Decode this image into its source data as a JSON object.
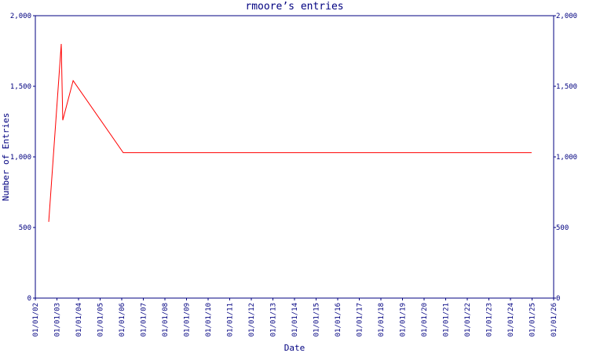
{
  "chart_data": {
    "type": "line",
    "title": "rmoore’s entries",
    "x_label": "Date",
    "y_label": "Number of Entries",
    "x": [
      2.62,
      3.2,
      3.27,
      3.75,
      6.07,
      24.98
    ],
    "series": [
      {
        "name": "rmoore",
        "color": "#ff0000",
        "values": [
          540,
          1800,
          1260,
          1540,
          1030,
          1030
        ]
      }
    ],
    "xlim": [
      2,
      26
    ],
    "xticks": [
      {
        "value": 2,
        "label": "01/01/02"
      },
      {
        "value": 3,
        "label": "01/01/03"
      },
      {
        "value": 4,
        "label": "01/01/04"
      },
      {
        "value": 5,
        "label": "01/01/05"
      },
      {
        "value": 6,
        "label": "01/01/06"
      },
      {
        "value": 7,
        "label": "01/01/07"
      },
      {
        "value": 8,
        "label": "01/01/08"
      },
      {
        "value": 9,
        "label": "01/01/09"
      },
      {
        "value": 10,
        "label": "01/01/10"
      },
      {
        "value": 11,
        "label": "01/01/11"
      },
      {
        "value": 12,
        "label": "01/01/12"
      },
      {
        "value": 13,
        "label": "01/01/13"
      },
      {
        "value": 14,
        "label": "01/01/14"
      },
      {
        "value": 15,
        "label": "01/01/15"
      },
      {
        "value": 16,
        "label": "01/01/16"
      },
      {
        "value": 17,
        "label": "01/01/17"
      },
      {
        "value": 18,
        "label": "01/01/18"
      },
      {
        "value": 19,
        "label": "01/01/19"
      },
      {
        "value": 20,
        "label": "01/01/20"
      },
      {
        "value": 21,
        "label": "01/01/21"
      },
      {
        "value": 22,
        "label": "01/01/22"
      },
      {
        "value": 23,
        "label": "01/01/23"
      },
      {
        "value": 24,
        "label": "01/01/24"
      },
      {
        "value": 25,
        "label": "01/01/25"
      },
      {
        "value": 26,
        "label": "01/01/26"
      }
    ],
    "ylim": [
      0,
      2000
    ],
    "yticks": [
      0,
      500,
      {
        "value": 1000,
        "label": "1,000"
      },
      {
        "value": 1500,
        "label": "1,500"
      },
      {
        "value": 2000,
        "label": "2,000"
      }
    ],
    "axis_color": "#000080"
  }
}
